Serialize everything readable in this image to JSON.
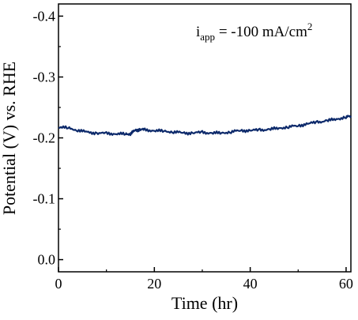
{
  "chart_data": {
    "type": "line",
    "xlabel": "Time (hr)",
    "ylabel": "Potential (V) vs. RHE",
    "xlim": [
      0,
      61
    ],
    "ylim": [
      0.02,
      -0.42
    ],
    "y_axis_inverted": true,
    "grid": false,
    "line_color": "#0d2a6b",
    "annotation": {
      "prefix": "i",
      "subscript": "app",
      "text": " = -100 mA/cm",
      "superscript": "2"
    },
    "x_ticks": [
      {
        "value": 0,
        "label": "0"
      },
      {
        "value": 20,
        "label": "20"
      },
      {
        "value": 40,
        "label": "40"
      },
      {
        "value": 60,
        "label": "60"
      }
    ],
    "y_ticks": [
      {
        "value": 0.0,
        "label": "0.0"
      },
      {
        "value": -0.1,
        "label": "-0.1"
      },
      {
        "value": -0.2,
        "label": "-0.2"
      },
      {
        "value": -0.3,
        "label": "-0.3"
      },
      {
        "value": -0.4,
        "label": "-0.4"
      }
    ],
    "series": [
      {
        "x": [
          0,
          2,
          4,
          6,
          8,
          10,
          12,
          14,
          15,
          16,
          17,
          18,
          20,
          22,
          24,
          26,
          28,
          30,
          32,
          34,
          36,
          38,
          40,
          42,
          44,
          46,
          48,
          50,
          52,
          54,
          56,
          58,
          60,
          61
        ],
        "y": [
          -0.218,
          -0.216,
          -0.213,
          -0.209,
          -0.208,
          -0.207,
          -0.207,
          -0.206,
          -0.207,
          -0.212,
          -0.214,
          -0.213,
          -0.212,
          -0.211,
          -0.21,
          -0.208,
          -0.208,
          -0.209,
          -0.208,
          -0.208,
          -0.21,
          -0.212,
          -0.212,
          -0.213,
          -0.214,
          -0.216,
          -0.218,
          -0.22,
          -0.223,
          -0.226,
          -0.228,
          -0.231,
          -0.234,
          -0.236
        ]
      }
    ]
  }
}
